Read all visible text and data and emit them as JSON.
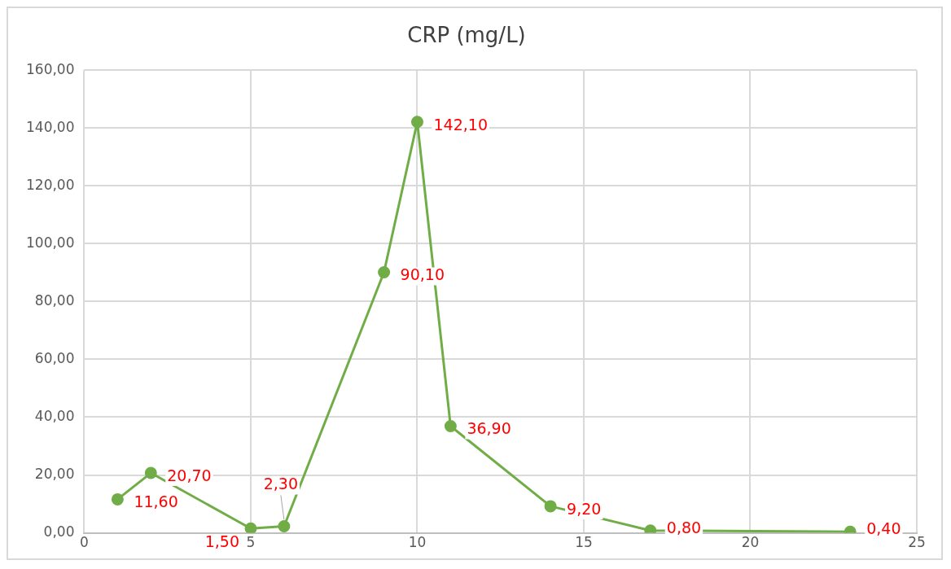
{
  "chart_data": {
    "type": "line",
    "title": "CRP (mg/L)",
    "x": [
      1,
      2,
      5,
      6,
      9,
      10,
      11,
      14,
      17,
      23
    ],
    "series": [
      {
        "color": "#70ad47",
        "values": [
          11.6,
          20.7,
          1.5,
          2.3,
          90.1,
          142.1,
          36.9,
          9.2,
          0.8,
          0.4
        ],
        "value_labels": [
          "11,60",
          "20,70",
          "1,50",
          "2,30",
          "90,10",
          "142,10",
          "36,90",
          "9,20",
          "0,80",
          "0,40"
        ]
      }
    ],
    "xlim": [
      0,
      25
    ],
    "xticks": [
      0,
      5,
      10,
      15,
      20,
      25
    ],
    "ylim": [
      0,
      160
    ],
    "yticks": [
      {
        "value": 0,
        "label": "0,00"
      },
      {
        "value": 20,
        "label": "20,00"
      },
      {
        "value": 40,
        "label": "40,00"
      },
      {
        "value": 60,
        "label": "60,00"
      },
      {
        "value": 80,
        "label": "80,00"
      },
      {
        "value": 100,
        "label": "100,00"
      },
      {
        "value": 120,
        "label": "120,00"
      },
      {
        "value": 140,
        "label": "140,00"
      },
      {
        "value": 160,
        "label": "160,00"
      }
    ],
    "grid": true,
    "marker": "circle",
    "line_style": "solid",
    "legend": false
  }
}
